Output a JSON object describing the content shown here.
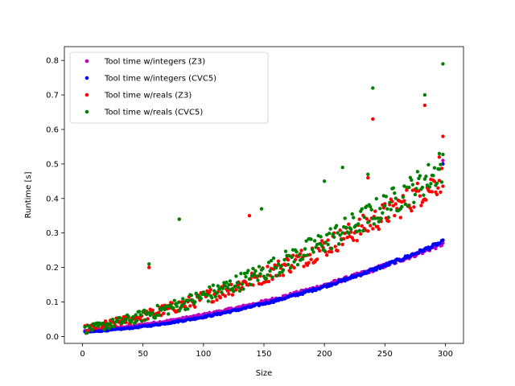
{
  "chart_data": {
    "type": "scatter",
    "xlabel": "Size",
    "ylabel": "Runtime [s]",
    "xlim": [
      -15,
      315
    ],
    "ylim": [
      -0.02,
      0.84
    ],
    "xticks": [
      0,
      50,
      100,
      150,
      200,
      250,
      300
    ],
    "yticks": [
      0.0,
      0.1,
      0.2,
      0.3,
      0.4,
      0.5,
      0.6,
      0.7,
      0.8
    ],
    "legend_position": "upper-left",
    "series": [
      {
        "name": "Tool time w/integers (Z3)",
        "color": "#bf00bf",
        "base": {
          "a": 0.015,
          "b": 0.00028,
          "c": 1.9e-06
        },
        "noise": 0.01
      },
      {
        "name": "Tool time w/integers (CVC5)",
        "color": "#0000ff",
        "base": {
          "a": 0.012,
          "b": 0.00022,
          "c": 2.2e-06
        },
        "noise": 0.008
      },
      {
        "name": "Tool time w/reals (Z3)",
        "color": "#ff0000",
        "base": {
          "a": 0.018,
          "b": 0.0006,
          "c": 2.8e-06
        },
        "noise": 0.04
      },
      {
        "name": "Tool time w/reals (CVC5)",
        "color": "#008000",
        "base": {
          "a": 0.015,
          "b": 0.00065,
          "c": 3e-06
        },
        "noise": 0.045
      }
    ],
    "highlight_points": [
      {
        "series": 3,
        "x": 298,
        "y": 0.79
      },
      {
        "series": 3,
        "x": 240,
        "y": 0.72
      },
      {
        "series": 3,
        "x": 283,
        "y": 0.7
      },
      {
        "series": 2,
        "x": 283,
        "y": 0.67
      },
      {
        "series": 2,
        "x": 240,
        "y": 0.63
      },
      {
        "series": 2,
        "x": 298,
        "y": 0.58
      },
      {
        "series": 3,
        "x": 295,
        "y": 0.53
      },
      {
        "series": 2,
        "x": 295,
        "y": 0.52
      },
      {
        "series": 1,
        "x": 298,
        "y": 0.5
      },
      {
        "series": 0,
        "x": 298,
        "y": 0.51
      },
      {
        "series": 3,
        "x": 215,
        "y": 0.49
      },
      {
        "series": 3,
        "x": 236,
        "y": 0.47
      },
      {
        "series": 3,
        "x": 200,
        "y": 0.45
      },
      {
        "series": 2,
        "x": 236,
        "y": 0.46
      },
      {
        "series": 3,
        "x": 80,
        "y": 0.34
      },
      {
        "series": 2,
        "x": 80,
        "y": 0.34
      },
      {
        "series": 3,
        "x": 55,
        "y": 0.21
      },
      {
        "series": 2,
        "x": 55,
        "y": 0.2
      },
      {
        "series": 3,
        "x": 148,
        "y": 0.37
      },
      {
        "series": 2,
        "x": 138,
        "y": 0.35
      }
    ]
  }
}
